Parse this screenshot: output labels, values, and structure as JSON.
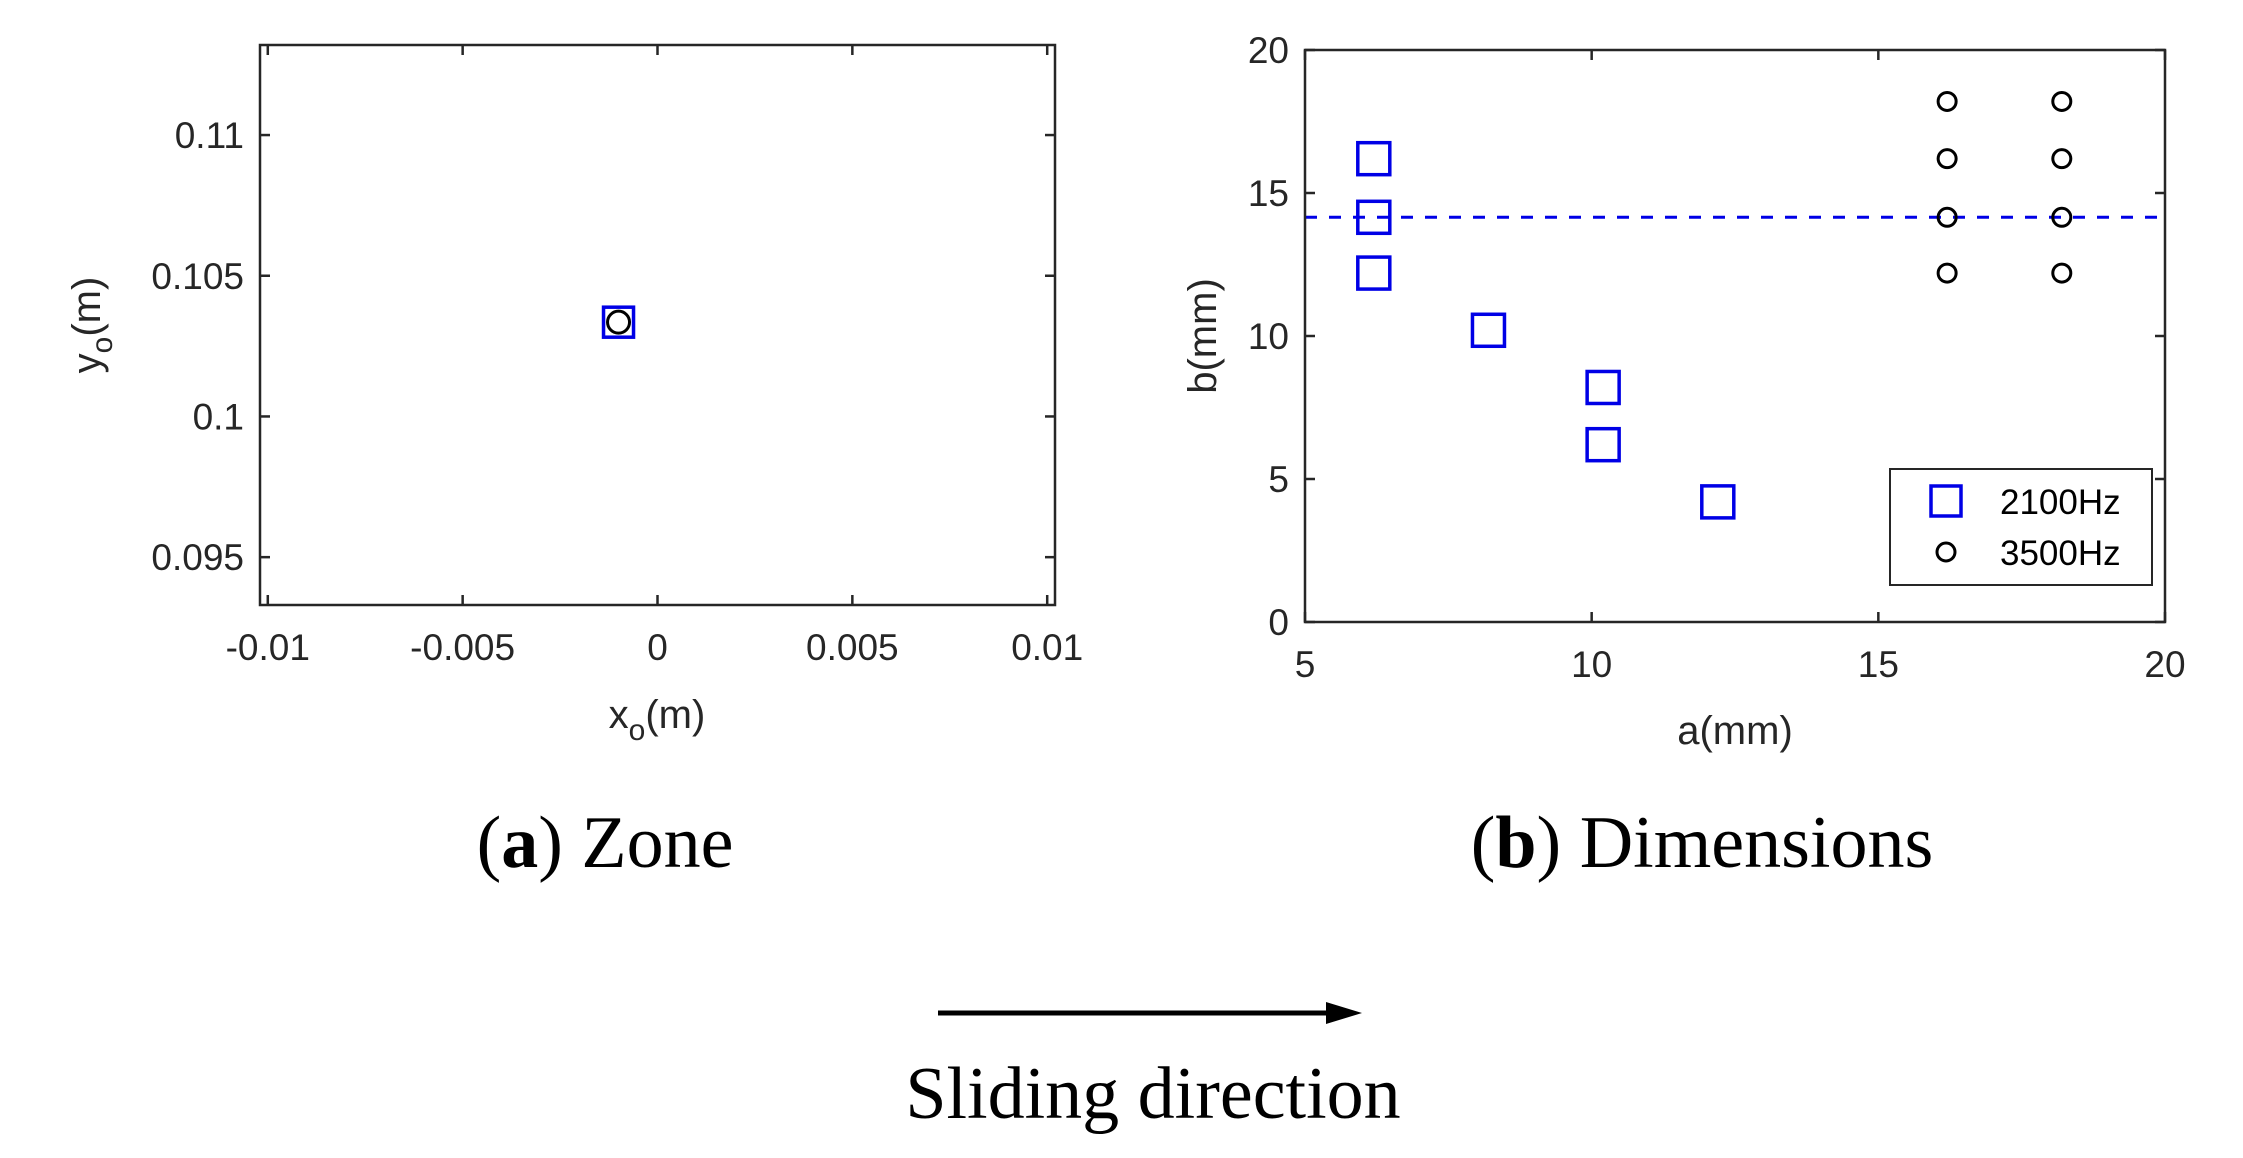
{
  "colors": {
    "series_2100": "#0000e6",
    "series_3500": "#000000",
    "axis": "#262626"
  },
  "chart_data": [
    {
      "type": "scatter",
      "id": "zone",
      "caption_letter": "a",
      "caption_text": "Zone",
      "xlabel_main": "x",
      "xlabel_sub": "o",
      "xlabel_unit": "(m)",
      "ylabel_main": "y",
      "ylabel_sub": "o",
      "ylabel_unit": "(m)",
      "xlim": [
        -0.0102,
        0.0102
      ],
      "ylim": [
        0.0933,
        0.1132
      ],
      "xticks": [
        -0.01,
        -0.005,
        0,
        0.005,
        0.01
      ],
      "xtick_labels": [
        "-0.01",
        "-0.005",
        "0",
        "0.005",
        "0.01"
      ],
      "yticks": [
        0.095,
        0.1,
        0.105,
        0.11
      ],
      "ytick_labels": [
        "0.095",
        "0.1",
        "0.105",
        "0.11"
      ],
      "series": [
        {
          "name": "2100Hz",
          "marker": "square",
          "color": "#0000e6",
          "points": [
            [
              -0.001,
              0.10335
            ]
          ]
        },
        {
          "name": "3500Hz",
          "marker": "circle",
          "color": "#000000",
          "points": [
            [
              -0.001,
              0.10335
            ]
          ]
        }
      ]
    },
    {
      "type": "scatter",
      "id": "dimensions",
      "caption_letter": "b",
      "caption_text": "Dimensions",
      "xlabel": "a(mm)",
      "ylabel": "b(mm)",
      "xlim": [
        5,
        20
      ],
      "ylim": [
        0,
        20
      ],
      "xticks": [
        5,
        10,
        15,
        20
      ],
      "xtick_labels": [
        "5",
        "10",
        "15",
        "20"
      ],
      "yticks": [
        0,
        5,
        10,
        15,
        20
      ],
      "ytick_labels": [
        "0",
        "5",
        "10",
        "15",
        "20"
      ],
      "reference_line": {
        "y": 14.15,
        "style": "dashed",
        "color": "#0000e6"
      },
      "legend": {
        "position": "bottom-right",
        "entries": [
          "2100Hz",
          "3500Hz"
        ]
      },
      "series": [
        {
          "name": "2100Hz",
          "marker": "square",
          "color": "#0000e6",
          "points": [
            [
              6.2,
              16.2
            ],
            [
              6.2,
              14.15
            ],
            [
              6.2,
              12.2
            ],
            [
              8.2,
              10.2
            ],
            [
              10.2,
              8.2
            ],
            [
              10.2,
              6.2
            ],
            [
              12.2,
              4.2
            ]
          ]
        },
        {
          "name": "3500Hz",
          "marker": "circle",
          "color": "#000000",
          "points": [
            [
              16.2,
              18.2
            ],
            [
              16.2,
              16.2
            ],
            [
              16.2,
              14.15
            ],
            [
              16.2,
              12.2
            ],
            [
              18.2,
              18.2
            ],
            [
              18.2,
              16.2
            ],
            [
              18.2,
              14.15
            ],
            [
              18.2,
              12.2
            ]
          ]
        }
      ]
    }
  ],
  "footer": {
    "arrow_label": "Sliding direction"
  }
}
